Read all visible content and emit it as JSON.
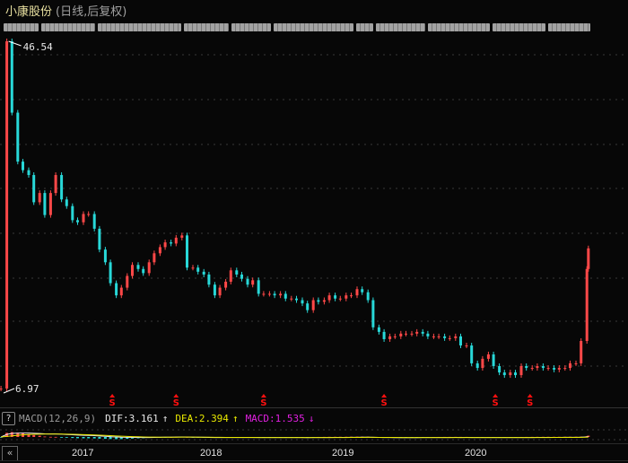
{
  "header": {
    "stock_name": "小康股份",
    "period_label": "(日线,后复权)"
  },
  "colors": {
    "up": "#ff4848",
    "down": "#28d8d8",
    "title": "#e8e0a0",
    "dif": "#e8e8e8",
    "dea": "#e8e800",
    "macd": "#e020e0",
    "signal_marker": "#ff1010"
  },
  "chart_data": {
    "type": "candlestick",
    "title": "",
    "scale": "log",
    "grid": "horizontal dotted",
    "annotations": {
      "max_label": "46.54",
      "min_label": "6.97"
    },
    "x_tick_labels": [
      "2017",
      "2018",
      "2019",
      "2020"
    ],
    "signal_marker_label": "S",
    "signal_marker_dates": [
      "2017-03-20",
      "2017-09-15",
      "2018-05-15",
      "2019-04-15",
      "2020-02-20",
      "2020-05-25"
    ],
    "closes": [
      [
        "2016-05-15",
        6.97
      ],
      [
        "2016-06-01",
        46.54
      ],
      [
        "2016-06-15",
        31.5
      ],
      [
        "2016-07-01",
        24.1
      ],
      [
        "2016-07-15",
        23.0
      ],
      [
        "2016-08-01",
        22.4
      ],
      [
        "2016-08-15",
        19.3
      ],
      [
        "2016-09-01",
        20.3
      ],
      [
        "2016-09-15",
        18.0
      ],
      [
        "2016-10-01",
        20.3
      ],
      [
        "2016-10-15",
        22.4
      ],
      [
        "2016-11-01",
        19.6
      ],
      [
        "2016-11-15",
        18.9
      ],
      [
        "2016-12-01",
        17.5
      ],
      [
        "2016-12-15",
        17.3
      ],
      [
        "2017-01-01",
        18.1
      ],
      [
        "2017-01-15",
        18.1
      ],
      [
        "2017-02-01",
        16.7
      ],
      [
        "2017-02-15",
        14.9
      ],
      [
        "2017-03-01",
        13.9
      ],
      [
        "2017-03-15",
        12.4
      ],
      [
        "2017-04-01",
        11.6
      ],
      [
        "2017-04-15",
        12.1
      ],
      [
        "2017-05-01",
        12.9
      ],
      [
        "2017-05-15",
        13.7
      ],
      [
        "2017-06-01",
        13.4
      ],
      [
        "2017-06-15",
        13.1
      ],
      [
        "2017-07-01",
        13.9
      ],
      [
        "2017-07-15",
        14.6
      ],
      [
        "2017-08-01",
        15.1
      ],
      [
        "2017-08-15",
        15.5
      ],
      [
        "2017-09-01",
        15.4
      ],
      [
        "2017-09-15",
        15.9
      ],
      [
        "2017-10-01",
        16.1
      ],
      [
        "2017-10-15",
        13.5
      ],
      [
        "2017-11-01",
        13.5
      ],
      [
        "2017-11-15",
        13.2
      ],
      [
        "2017-12-01",
        13.0
      ],
      [
        "2017-12-15",
        12.3
      ],
      [
        "2018-01-01",
        11.6
      ],
      [
        "2018-01-15",
        12.1
      ],
      [
        "2018-02-01",
        12.5
      ],
      [
        "2018-02-15",
        13.3
      ],
      [
        "2018-03-01",
        13.0
      ],
      [
        "2018-03-15",
        12.7
      ],
      [
        "2018-04-01",
        12.3
      ],
      [
        "2018-04-15",
        12.6
      ],
      [
        "2018-05-01",
        11.7
      ],
      [
        "2018-05-15",
        11.7
      ],
      [
        "2018-06-01",
        11.7
      ],
      [
        "2018-06-15",
        11.6
      ],
      [
        "2018-07-01",
        11.7
      ],
      [
        "2018-07-15",
        11.4
      ],
      [
        "2018-08-01",
        11.4
      ],
      [
        "2018-08-15",
        11.3
      ],
      [
        "2018-09-01",
        11.1
      ],
      [
        "2018-09-15",
        10.7
      ],
      [
        "2018-10-01",
        11.3
      ],
      [
        "2018-10-15",
        11.2
      ],
      [
        "2018-11-01",
        11.3
      ],
      [
        "2018-11-15",
        11.6
      ],
      [
        "2018-12-01",
        11.4
      ],
      [
        "2018-12-15",
        11.4
      ],
      [
        "2019-01-01",
        11.6
      ],
      [
        "2019-01-15",
        11.6
      ],
      [
        "2019-02-01",
        12.0
      ],
      [
        "2019-02-15",
        11.8
      ],
      [
        "2019-03-01",
        11.3
      ],
      [
        "2019-03-15",
        9.74
      ],
      [
        "2019-04-01",
        9.5
      ],
      [
        "2019-04-15",
        9.13
      ],
      [
        "2019-05-01",
        9.27
      ],
      [
        "2019-05-15",
        9.27
      ],
      [
        "2019-06-01",
        9.41
      ],
      [
        "2019-06-15",
        9.41
      ],
      [
        "2019-07-01",
        9.41
      ],
      [
        "2019-07-15",
        9.5
      ],
      [
        "2019-08-01",
        9.41
      ],
      [
        "2019-08-15",
        9.27
      ],
      [
        "2019-09-01",
        9.27
      ],
      [
        "2019-09-15",
        9.27
      ],
      [
        "2019-10-01",
        9.18
      ],
      [
        "2019-10-15",
        9.18
      ],
      [
        "2019-11-01",
        9.27
      ],
      [
        "2019-11-15",
        8.82
      ],
      [
        "2019-12-01",
        8.82
      ],
      [
        "2019-12-15",
        8.0
      ],
      [
        "2020-01-01",
        7.8
      ],
      [
        "2020-01-15",
        8.2
      ],
      [
        "2020-02-01",
        8.4
      ],
      [
        "2020-02-15",
        7.88
      ],
      [
        "2020-03-01",
        7.61
      ],
      [
        "2020-03-15",
        7.5
      ],
      [
        "2020-04-01",
        7.61
      ],
      [
        "2020-04-15",
        7.5
      ],
      [
        "2020-05-01",
        7.88
      ],
      [
        "2020-05-15",
        7.8
      ],
      [
        "2020-06-01",
        7.8
      ],
      [
        "2020-06-15",
        7.88
      ],
      [
        "2020-07-01",
        7.8
      ],
      [
        "2020-07-15",
        7.8
      ],
      [
        "2020-08-01",
        7.73
      ],
      [
        "2020-08-15",
        7.8
      ],
      [
        "2020-09-01",
        7.8
      ],
      [
        "2020-09-15",
        8.0
      ],
      [
        "2020-10-01",
        8.0
      ],
      [
        "2020-10-15",
        9.04
      ],
      [
        "2020-11-01",
        13.4
      ],
      [
        "2020-11-05",
        15.0
      ]
    ],
    "ylim": [
      6.97,
      46.54
    ]
  },
  "macd": {
    "help_label": "?",
    "name": "MACD(12,26,9)",
    "dif_label": "DIF:3.161",
    "dif_arrow": "↑",
    "dea_label": "DEA:2.394",
    "dea_arrow": "↑",
    "macd_label": "MACD:1.535",
    "macd_arrow": "↓"
  },
  "axis": {
    "back_button": "«",
    "years": [
      "2017",
      "2018",
      "2019",
      "2020"
    ]
  }
}
